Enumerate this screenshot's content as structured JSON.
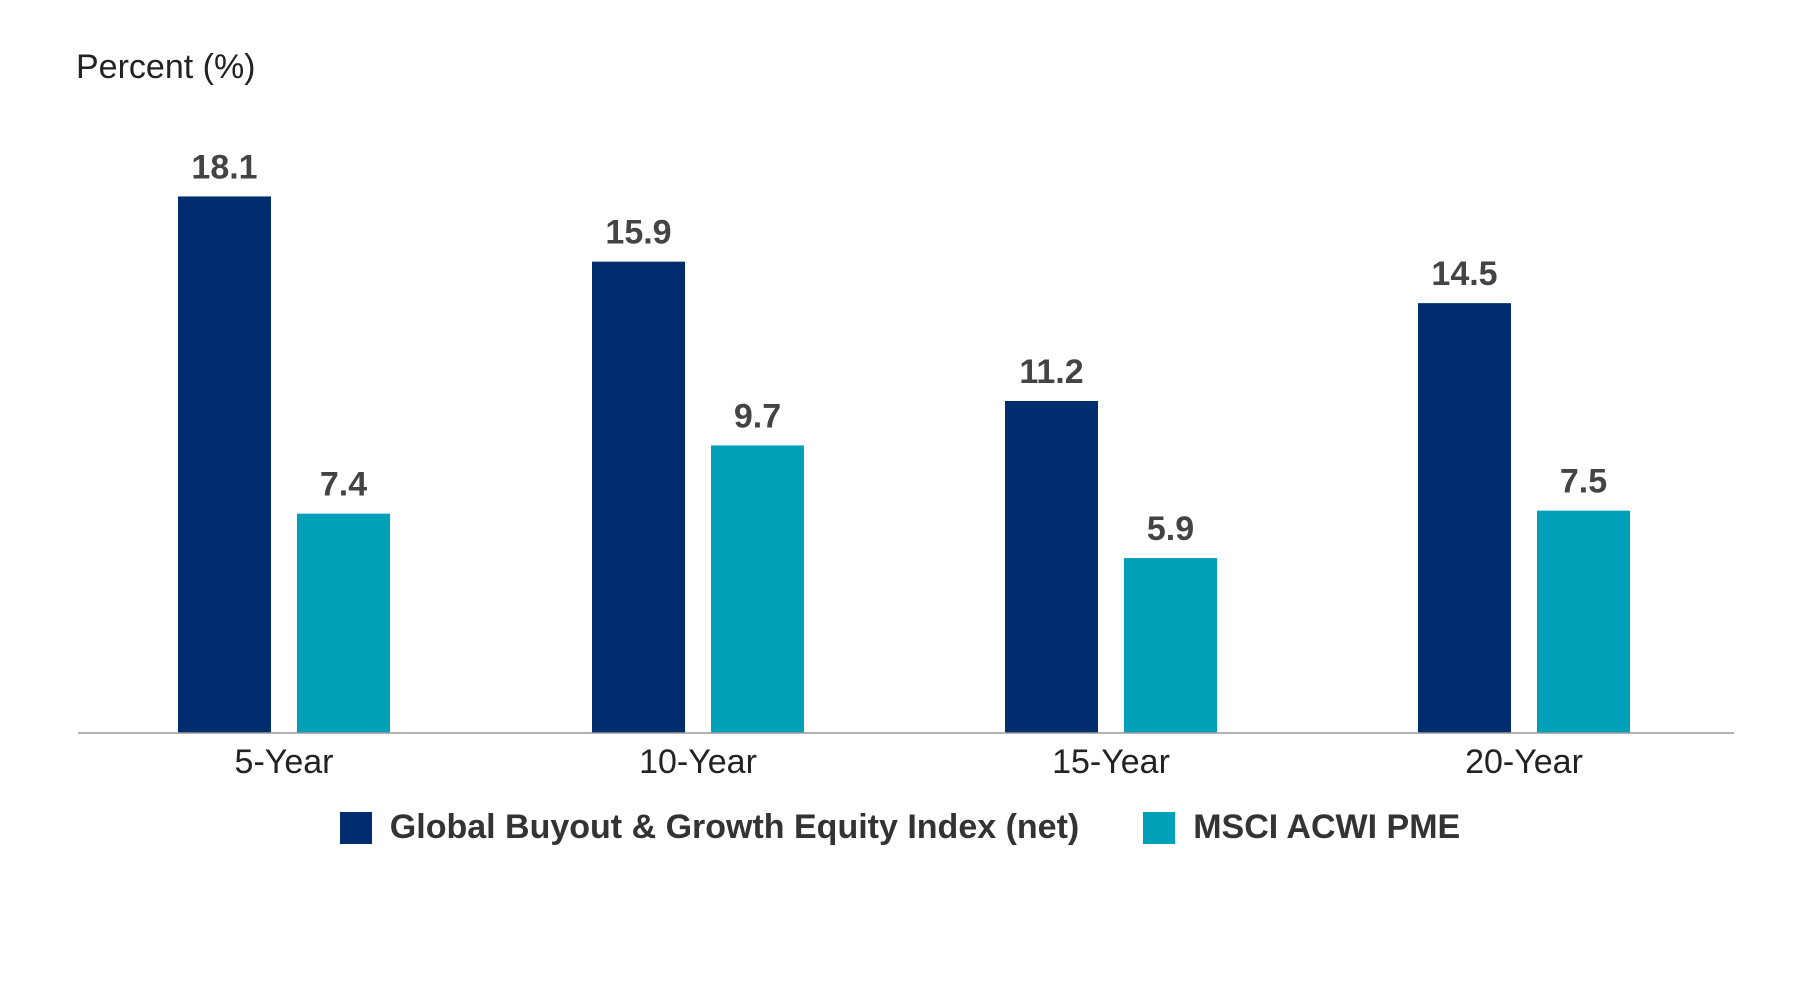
{
  "chart_data": {
    "type": "bar",
    "ylabel": "Percent (%)",
    "categories": [
      "5-Year",
      "10-Year",
      "15-Year",
      "20-Year"
    ],
    "series": [
      {
        "name": "Global Buyout & Growth Equity Index (net)",
        "color": "#002D6E",
        "values": [
          18.1,
          15.9,
          11.2,
          14.5
        ]
      },
      {
        "name": "MSCI ACWI PME",
        "color": "#00A0B8",
        "values": [
          7.4,
          9.7,
          5.9,
          7.5
        ]
      }
    ],
    "ylim": [
      0,
      20
    ],
    "data_labels": true,
    "grid": false,
    "legend_position": "bottom"
  }
}
